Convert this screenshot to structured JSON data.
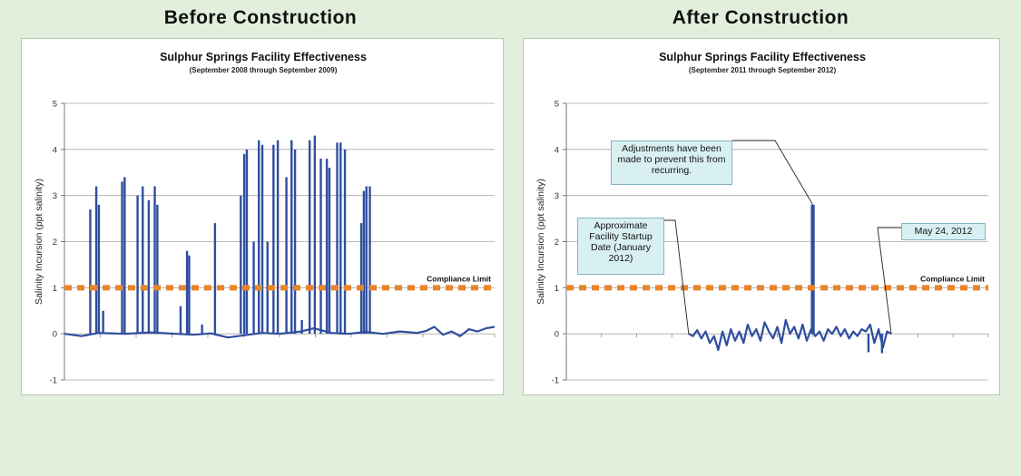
{
  "headings": {
    "left": "Before Construction",
    "right": "After Construction"
  },
  "colors": {
    "series": "#2f4e9e",
    "limit": "#e8852a",
    "grid": "#a9a9a9",
    "note_fill": "#d9f0f3"
  },
  "chart_data": [
    {
      "type": "line",
      "title": "Sulphur Springs Facility Effectiveness",
      "subtitle": "(September 2008 through September 2009)",
      "ylabel": "Salinity Incursion (ppt salinity)",
      "xlabel": "",
      "ylim": [
        -1,
        5
      ],
      "yticks": [
        "5",
        "4",
        "3",
        "2",
        "1",
        "0",
        "-1"
      ],
      "compliance_limit": {
        "value": 1,
        "label": "Compliance Limit"
      },
      "x_range": [
        0,
        100
      ],
      "baseline": [
        [
          0,
          0.0
        ],
        [
          4,
          -0.05
        ],
        [
          8,
          0.02
        ],
        [
          14,
          0.0
        ],
        [
          20,
          0.03
        ],
        [
          26,
          0.0
        ],
        [
          30,
          -0.02
        ],
        [
          34,
          0.01
        ],
        [
          38,
          -0.08
        ],
        [
          42,
          -0.03
        ],
        [
          46,
          0.02
        ],
        [
          50,
          0.0
        ],
        [
          55,
          0.05
        ],
        [
          58,
          0.12
        ],
        [
          62,
          0.02
        ],
        [
          66,
          0.0
        ],
        [
          70,
          0.04
        ],
        [
          74,
          0.0
        ],
        [
          78,
          0.05
        ],
        [
          82,
          0.02
        ],
        [
          84,
          0.06
        ],
        [
          86,
          0.15
        ],
        [
          88,
          -0.02
        ],
        [
          90,
          0.05
        ],
        [
          92,
          -0.05
        ],
        [
          94,
          0.1
        ],
        [
          96,
          0.05
        ],
        [
          98,
          0.12
        ],
        [
          100,
          0.15
        ]
      ],
      "spikes": [
        [
          6,
          2.7
        ],
        [
          7.4,
          3.2
        ],
        [
          8,
          2.8
        ],
        [
          9,
          0.5
        ],
        [
          13.4,
          3.3
        ],
        [
          14,
          3.4
        ],
        [
          17,
          3.0
        ],
        [
          18.2,
          3.2
        ],
        [
          19.6,
          2.9
        ],
        [
          21,
          3.2
        ],
        [
          21.6,
          2.8
        ],
        [
          27,
          0.6
        ],
        [
          28.5,
          1.8
        ],
        [
          29,
          1.7
        ],
        [
          32,
          0.2
        ],
        [
          35,
          2.4
        ],
        [
          41,
          3.0
        ],
        [
          41.8,
          3.9
        ],
        [
          42.4,
          4.0
        ],
        [
          44,
          2.0
        ],
        [
          45.2,
          4.2
        ],
        [
          46,
          4.1
        ],
        [
          47.2,
          2.0
        ],
        [
          48.6,
          4.1
        ],
        [
          49.6,
          4.2
        ],
        [
          51.6,
          3.4
        ],
        [
          52.8,
          4.2
        ],
        [
          53.6,
          4.0
        ],
        [
          55.2,
          0.3
        ],
        [
          57.0,
          4.2
        ],
        [
          58.2,
          4.3
        ],
        [
          59.6,
          3.8
        ],
        [
          61,
          3.8
        ],
        [
          61.6,
          3.6
        ],
        [
          63.4,
          4.15
        ],
        [
          64.2,
          4.15
        ],
        [
          65.2,
          4.0
        ],
        [
          69,
          2.4
        ],
        [
          69.6,
          3.1
        ],
        [
          70.2,
          3.2
        ],
        [
          71,
          3.2
        ]
      ]
    },
    {
      "type": "line",
      "title": "Sulphur Springs Facility Effectiveness",
      "subtitle": "(September 2011 through September 2012)",
      "ylabel": "Salinity Incursion (ppt salinity)",
      "xlabel": "",
      "ylim": [
        -1,
        5
      ],
      "yticks": [
        "5",
        "4",
        "3",
        "2",
        "1",
        "0",
        "-1"
      ],
      "compliance_limit": {
        "value": 1,
        "label": "Compliance Limit"
      },
      "x_range": [
        0,
        100
      ],
      "baseline": [
        [
          29,
          0.0
        ],
        [
          30,
          -0.05
        ],
        [
          31,
          0.08
        ],
        [
          32,
          -0.1
        ],
        [
          33,
          0.05
        ],
        [
          34,
          -0.2
        ],
        [
          35,
          -0.05
        ],
        [
          36,
          -0.35
        ],
        [
          37,
          0.05
        ],
        [
          38,
          -0.25
        ],
        [
          39,
          0.1
        ],
        [
          40,
          -0.15
        ],
        [
          41,
          0.05
        ],
        [
          42,
          -0.2
        ],
        [
          43,
          0.2
        ],
        [
          44,
          -0.05
        ],
        [
          45,
          0.1
        ],
        [
          46,
          -0.15
        ],
        [
          47,
          0.25
        ],
        [
          48,
          0.05
        ],
        [
          49,
          -0.1
        ],
        [
          50,
          0.15
        ],
        [
          51,
          -0.2
        ],
        [
          52,
          0.3
        ],
        [
          53,
          0.0
        ],
        [
          54,
          0.15
        ],
        [
          55,
          -0.1
        ],
        [
          56,
          0.2
        ],
        [
          57,
          -0.15
        ],
        [
          58,
          0.1
        ],
        [
          59,
          -0.05
        ],
        [
          60,
          0.05
        ],
        [
          61,
          -0.15
        ],
        [
          62,
          0.1
        ],
        [
          63,
          0.0
        ],
        [
          64,
          0.15
        ],
        [
          65,
          -0.05
        ],
        [
          66,
          0.1
        ],
        [
          67,
          -0.1
        ],
        [
          68,
          0.05
        ],
        [
          69,
          -0.05
        ],
        [
          70,
          0.1
        ],
        [
          71,
          0.05
        ],
        [
          72,
          0.2
        ],
        [
          73,
          -0.2
        ],
        [
          74,
          0.1
        ],
        [
          75,
          -0.3
        ],
        [
          76,
          0.05
        ],
        [
          77,
          0.0
        ]
      ],
      "spikes": [
        [
          58.2,
          2.8
        ],
        [
          58.6,
          2.8
        ],
        [
          71.6,
          -0.4
        ],
        [
          74.8,
          -0.42
        ]
      ],
      "annotations": [
        {
          "label": "Adjustments have been made to prevent this from recurring.",
          "target": [
            58.4,
            2.8
          ]
        },
        {
          "label": "Approximate Facility Startup Date (January 2012)",
          "target": [
            29,
            0.0
          ]
        },
        {
          "label": "May 24, 2012",
          "target": [
            77,
            0.0
          ]
        }
      ]
    }
  ]
}
